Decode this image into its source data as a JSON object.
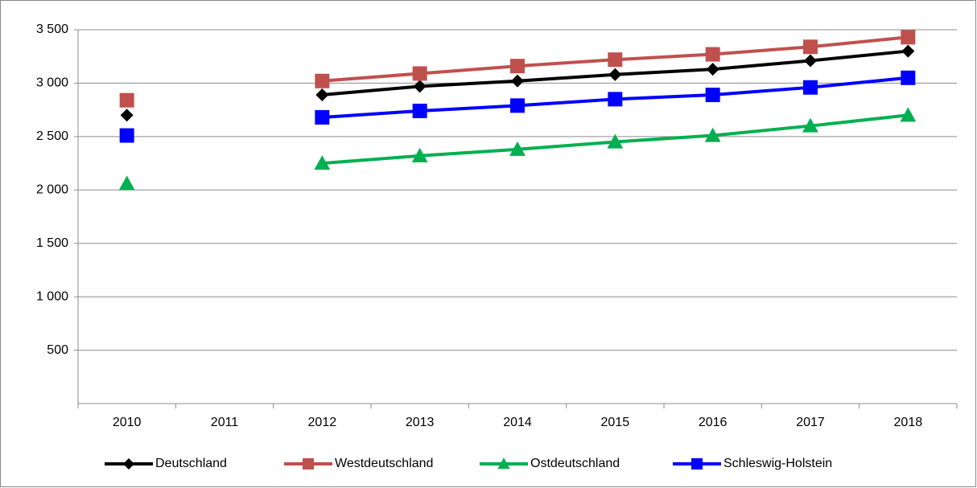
{
  "chart_data": {
    "type": "line",
    "categories": [
      "2010",
      "2011",
      "2012",
      "2013",
      "2014",
      "2015",
      "2016",
      "2017",
      "2018"
    ],
    "series": [
      {
        "name": "Deutschland",
        "color": "#000000",
        "marker": "diamond",
        "values": [
          2700,
          null,
          2890,
          2970,
          3020,
          3080,
          3130,
          3210,
          3300
        ]
      },
      {
        "name": "Westdeutschland",
        "color": "#c0504d",
        "marker": "square",
        "values": [
          2840,
          null,
          3020,
          3090,
          3160,
          3220,
          3270,
          3340,
          3430
        ]
      },
      {
        "name": "Ostdeutschland",
        "color": "#00b050",
        "marker": "triangle",
        "values": [
          2060,
          null,
          2250,
          2320,
          2380,
          2450,
          2510,
          2600,
          2700
        ]
      },
      {
        "name": "Schleswig-Holstein",
        "color": "#0000ff",
        "marker": "square",
        "values": [
          2510,
          null,
          2680,
          2740,
          2790,
          2850,
          2890,
          2960,
          3050
        ]
      }
    ],
    "ylim": [
      0,
      3500
    ],
    "yticks": [
      500,
      {
        "value": 1000,
        "label": "1 000"
      },
      {
        "value": 1500,
        "label": "1 500"
      },
      {
        "value": 2000,
        "label": "2 000"
      },
      {
        "value": 2500,
        "label": "2 500"
      },
      {
        "value": 3000,
        "label": "3 000"
      },
      {
        "value": 3500,
        "label": "3 500"
      }
    ],
    "grid": true,
    "legend": "bottom"
  }
}
